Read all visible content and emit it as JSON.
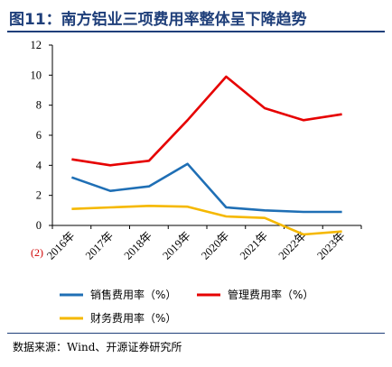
{
  "title": "图11：南方铝业三项费用率整体呈下降趋势",
  "source": "数据来源：Wind、开源证券研究所",
  "chart_data": {
    "type": "line",
    "categories": [
      "2016年",
      "2017年",
      "2018年",
      "2019年",
      "2020年",
      "2021年",
      "2022年",
      "2023年"
    ],
    "ylim": [
      0,
      12
    ],
    "yticks": [
      0,
      2,
      4,
      6,
      8,
      10,
      12
    ],
    "extra_label": "(2)",
    "grid": false,
    "legend_position": "bottom",
    "series": [
      {
        "name": "销售费用率（%）",
        "color": "#1f6fb5",
        "values": [
          3.2,
          2.3,
          2.6,
          4.1,
          1.2,
          1.0,
          0.9,
          0.9
        ]
      },
      {
        "name": "管理费用率（%）",
        "color": "#e60000",
        "values": [
          4.4,
          4.0,
          4.3,
          7.0,
          9.9,
          7.8,
          7.0,
          7.4
        ]
      },
      {
        "name": "财务费用率（%）",
        "color": "#f5b800",
        "values": [
          1.1,
          1.2,
          1.3,
          1.25,
          0.6,
          0.5,
          -0.6,
          -0.4
        ]
      }
    ]
  }
}
